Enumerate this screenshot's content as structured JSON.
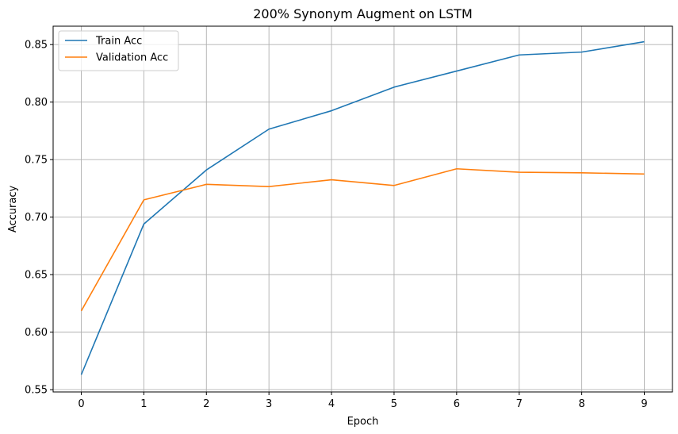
{
  "chart_data": {
    "type": "line",
    "title": "200% Synonym Augment on LSTM",
    "xlabel": "Epoch",
    "ylabel": "Accuracy",
    "x": [
      0,
      1,
      2,
      3,
      4,
      5,
      6,
      7,
      8,
      9
    ],
    "xlim": [
      -0.45,
      9.45
    ],
    "ylim": [
      0.548,
      0.866
    ],
    "xticks": [
      0,
      1,
      2,
      3,
      4,
      5,
      6,
      7,
      8,
      9
    ],
    "yticks": [
      0.55,
      0.6,
      0.65,
      0.7,
      0.75,
      0.8,
      0.85
    ],
    "ytick_labels": [
      "0.55",
      "0.60",
      "0.65",
      "0.70",
      "0.75",
      "0.80",
      "0.85"
    ],
    "grid": true,
    "legend_position": "top-left",
    "series": [
      {
        "name": "Train Acc",
        "color": "#1f77b4",
        "values": [
          0.563,
          0.694,
          0.741,
          0.7765,
          0.7925,
          0.813,
          0.827,
          0.841,
          0.8435,
          0.8525
        ]
      },
      {
        "name": "Validation Acc",
        "color": "#ff7f0e",
        "values": [
          0.6185,
          0.715,
          0.7285,
          0.7265,
          0.7325,
          0.7275,
          0.742,
          0.739,
          0.7385,
          0.7375
        ]
      }
    ]
  }
}
